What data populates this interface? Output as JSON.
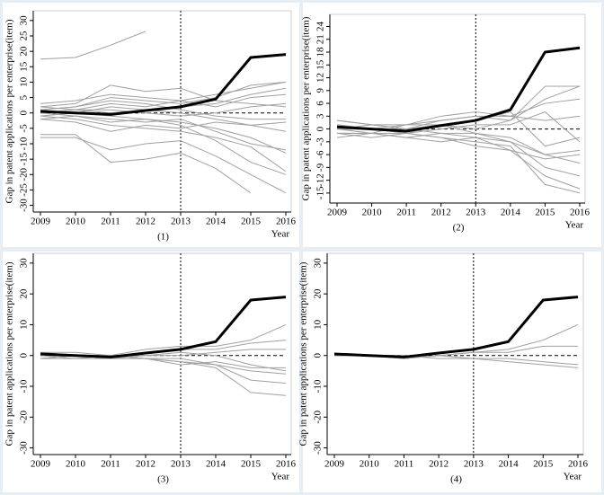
{
  "chart_data": [
    {
      "type": "line",
      "caption": "(1)",
      "xlabel": "Year",
      "ylabel": "Gap in patent applications per enterprise(item)",
      "x": [
        2009,
        2010,
        2011,
        2012,
        2013,
        2014,
        2015,
        2016
      ],
      "xlim": [
        2009,
        2016
      ],
      "xticks": [
        2009,
        2010,
        2011,
        2012,
        2013,
        2014,
        2015,
        2016
      ],
      "ylim": [
        -31,
        32
      ],
      "yticks": [
        -30,
        -25,
        -20,
        -15,
        -10,
        -5,
        0,
        5,
        10,
        15,
        20,
        25,
        30
      ],
      "vline": 2013,
      "hline": 0,
      "series": [
        {
          "color": "#a0a0a0",
          "linewidth": 1,
          "values": [
            17.5,
            18,
            22,
            26.5,
            null,
            null,
            null,
            null
          ]
        },
        {
          "color": "#a0a0a0",
          "linewidth": 1,
          "values": [
            3,
            4,
            6,
            5,
            4,
            6,
            8,
            10
          ]
        },
        {
          "color": "#a0a0a0",
          "linewidth": 1,
          "values": [
            2,
            3,
            9,
            7,
            8,
            4,
            3,
            2
          ]
        },
        {
          "color": "#a0a0a0",
          "linewidth": 1,
          "values": [
            1,
            2,
            5,
            4,
            3,
            5,
            9,
            10
          ]
        },
        {
          "color": "#a0a0a0",
          "linewidth": 1,
          "values": [
            0,
            1,
            3,
            2,
            4,
            2,
            5,
            6
          ]
        },
        {
          "color": "#a0a0a0",
          "linewidth": 1,
          "values": [
            -1,
            0,
            2,
            1,
            0,
            -2,
            -4,
            -3
          ]
        },
        {
          "color": "#a0a0a0",
          "linewidth": 1,
          "values": [
            -2,
            -1,
            -3,
            -2,
            -4,
            -9,
            -16,
            -20
          ]
        },
        {
          "color": "#a0a0a0",
          "linewidth": 1,
          "values": [
            -7,
            -7,
            -16,
            -15,
            -13,
            -18,
            -26,
            null
          ]
        },
        {
          "color": "#a0a0a0",
          "linewidth": 1,
          "values": [
            -8,
            -8,
            -12,
            -10,
            -9,
            -14,
            -20,
            -26
          ]
        },
        {
          "color": "#a0a0a0",
          "linewidth": 1,
          "values": [
            1,
            0,
            -1,
            -2,
            -3,
            -5,
            -8,
            -13
          ]
        },
        {
          "color": "#a0a0a0",
          "linewidth": 1,
          "values": [
            0,
            -1,
            -2,
            -3,
            -2,
            -6,
            -10,
            -12
          ]
        },
        {
          "color": "#a0a0a0",
          "linewidth": 1,
          "values": [
            -1,
            -2,
            -4,
            -5,
            -6,
            -8,
            -11,
            -19
          ]
        },
        {
          "color": "#a0a0a0",
          "linewidth": 1,
          "values": [
            2,
            1,
            0,
            1,
            2,
            3,
            6,
            8
          ]
        },
        {
          "color": "#a0a0a0",
          "linewidth": 1,
          "values": [
            -2,
            -3,
            -6,
            -4,
            -5,
            -3,
            -4,
            -6
          ]
        },
        {
          "color": "#a0a0a0",
          "linewidth": 1,
          "values": [
            0,
            1,
            1,
            0,
            -1,
            0,
            2,
            3
          ]
        },
        {
          "color": "#a0a0a0",
          "linewidth": 1,
          "values": [
            1,
            2,
            4,
            3,
            1,
            -1,
            -2,
            -2
          ]
        },
        {
          "color": "#000000",
          "linewidth": 3,
          "values": [
            0.5,
            0,
            -0.5,
            0.8,
            2,
            4.5,
            18,
            19
          ]
        }
      ]
    },
    {
      "type": "line",
      "caption": "(2)",
      "xlabel": "Year",
      "ylabel": "Gap in patent applications per enterprise(item)",
      "x": [
        2009,
        2010,
        2011,
        2012,
        2013,
        2014,
        2015,
        2016
      ],
      "xlim": [
        2009,
        2016
      ],
      "xticks": [
        2009,
        2010,
        2011,
        2012,
        2013,
        2014,
        2015,
        2016
      ],
      "ylim": [
        -16.5,
        26
      ],
      "yticks": [
        -15,
        -12,
        -9,
        -6,
        -3,
        0,
        3,
        6,
        9,
        12,
        15,
        18,
        21,
        24
      ],
      "vline": 2013,
      "hline": 0,
      "series": [
        {
          "color": "#a0a0a0",
          "linewidth": 1,
          "values": [
            2,
            1,
            0,
            2,
            3,
            2,
            10,
            10
          ]
        },
        {
          "color": "#a0a0a0",
          "linewidth": 1,
          "values": [
            -1,
            -1,
            1,
            3,
            4,
            3,
            6,
            7
          ]
        },
        {
          "color": "#a0a0a0",
          "linewidth": 1,
          "values": [
            0,
            0,
            -1,
            1,
            2,
            4,
            -4,
            -2
          ]
        },
        {
          "color": "#a0a0a0",
          "linewidth": 1,
          "values": [
            1,
            0,
            0,
            1,
            -1,
            -3,
            -9,
            -11
          ]
        },
        {
          "color": "#a0a0a0",
          "linewidth": 1,
          "values": [
            -1,
            -2,
            -1,
            -2,
            -3,
            -4,
            -13,
            -15
          ]
        },
        {
          "color": "#a0a0a0",
          "linewidth": 1,
          "values": [
            0,
            -1,
            -2,
            -1,
            -2,
            -5,
            -11,
            -14
          ]
        },
        {
          "color": "#a0a0a0",
          "linewidth": 1,
          "values": [
            2,
            1,
            1,
            2,
            3,
            3,
            2,
            3
          ]
        },
        {
          "color": "#a0a0a0",
          "linewidth": 1,
          "values": [
            0,
            1,
            0,
            -1,
            -1,
            -2,
            -6,
            -5
          ]
        },
        {
          "color": "#a0a0a0",
          "linewidth": 1,
          "values": [
            -1,
            -1,
            -2,
            -3,
            -2,
            -3,
            -6,
            -8
          ]
        },
        {
          "color": "#a0a0a0",
          "linewidth": 1,
          "values": [
            1,
            0,
            -1,
            0,
            1,
            1,
            4,
            -3
          ]
        },
        {
          "color": "#a0a0a0",
          "linewidth": 1,
          "values": [
            0,
            0,
            1,
            1,
            0,
            2,
            7,
            10
          ]
        },
        {
          "color": "#a0a0a0",
          "linewidth": 1,
          "values": [
            -2,
            -1,
            -1,
            -2,
            -4,
            -5,
            -7,
            -6
          ]
        },
        {
          "color": "#000000",
          "linewidth": 3,
          "values": [
            0.5,
            0,
            -0.5,
            0.8,
            2,
            4.5,
            18,
            19
          ]
        }
      ]
    },
    {
      "type": "line",
      "caption": "(3)",
      "xlabel": "Year",
      "ylabel": "Gap in patent applications per enterprise(item)",
      "x": [
        2009,
        2010,
        2011,
        2012,
        2013,
        2014,
        2015,
        2016
      ],
      "xlim": [
        2009,
        2016
      ],
      "xticks": [
        2009,
        2010,
        2011,
        2012,
        2013,
        2014,
        2015,
        2016
      ],
      "ylim": [
        -31,
        32
      ],
      "yticks": [
        -30,
        -20,
        -10,
        0,
        10,
        20,
        30
      ],
      "vline": 2013,
      "hline": 0,
      "series": [
        {
          "color": "#a0a0a0",
          "linewidth": 1,
          "values": [
            1,
            1,
            0,
            2,
            3,
            3,
            5,
            10
          ]
        },
        {
          "color": "#a0a0a0",
          "linewidth": 1,
          "values": [
            0,
            0,
            -1,
            1,
            2,
            2,
            4,
            5
          ]
        },
        {
          "color": "#a0a0a0",
          "linewidth": 1,
          "values": [
            -1,
            0,
            0,
            0,
            1,
            0,
            -3,
            -5
          ]
        },
        {
          "color": "#a0a0a0",
          "linewidth": 1,
          "values": [
            0,
            -1,
            -1,
            -1,
            -2,
            -4,
            -12,
            -13
          ]
        },
        {
          "color": "#a0a0a0",
          "linewidth": 1,
          "values": [
            1,
            0,
            0,
            -1,
            -1,
            -3,
            -8,
            -9
          ]
        },
        {
          "color": "#a0a0a0",
          "linewidth": 1,
          "values": [
            -1,
            -1,
            0,
            -1,
            -2,
            -3,
            -5,
            -6
          ]
        },
        {
          "color": "#a0a0a0",
          "linewidth": 1,
          "values": [
            0,
            0,
            -1,
            0,
            0,
            1,
            2,
            2
          ]
        },
        {
          "color": "#a0a0a0",
          "linewidth": 1,
          "values": [
            -1,
            0,
            0,
            -1,
            -3,
            -2,
            -4,
            -4
          ]
        },
        {
          "color": "#000000",
          "linewidth": 3,
          "values": [
            0.5,
            0,
            -0.5,
            0.8,
            2,
            4.5,
            18,
            19
          ]
        }
      ]
    },
    {
      "type": "line",
      "caption": "(4)",
      "xlabel": "Year",
      "ylabel": "Gap in patent applications per enterprise(item)",
      "x": [
        2009,
        2010,
        2011,
        2012,
        2013,
        2014,
        2015,
        2016
      ],
      "xlim": [
        2009,
        2016
      ],
      "xticks": [
        2009,
        2010,
        2011,
        2012,
        2013,
        2014,
        2015,
        2016
      ],
      "ylim": [
        -31,
        32
      ],
      "yticks": [
        -30,
        -20,
        -10,
        0,
        10,
        20,
        30
      ],
      "vline": 2013,
      "hline": 0,
      "series": [
        {
          "color": "#a0a0a0",
          "linewidth": 1,
          "values": [
            0,
            0,
            -1,
            0,
            1,
            2,
            5,
            10
          ]
        },
        {
          "color": "#a0a0a0",
          "linewidth": 1,
          "values": [
            0,
            0,
            -1,
            0,
            1,
            1,
            3,
            3
          ]
        },
        {
          "color": "#a0a0a0",
          "linewidth": 1,
          "values": [
            0,
            0,
            0,
            -1,
            -1,
            -2,
            -3,
            -4
          ]
        },
        {
          "color": "#a0a0a0",
          "linewidth": 1,
          "values": [
            0,
            0,
            -1,
            0,
            -1,
            -1,
            -2,
            -3
          ]
        },
        {
          "color": "#000000",
          "linewidth": 3,
          "values": [
            0.5,
            0,
            -0.5,
            0.8,
            2,
            4.5,
            18,
            19
          ]
        }
      ]
    }
  ]
}
